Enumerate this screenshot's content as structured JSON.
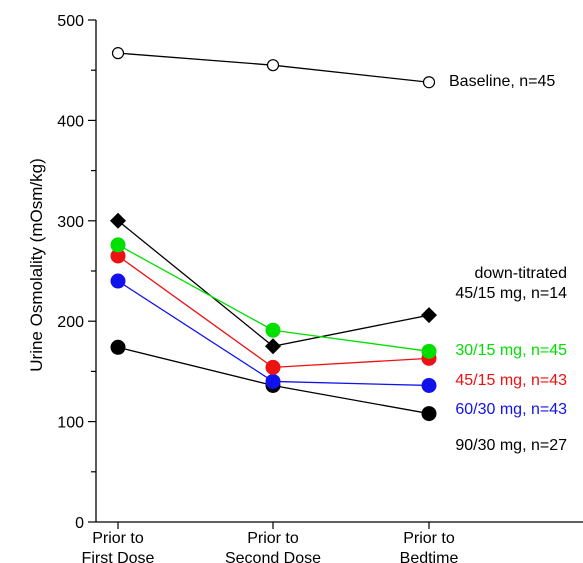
{
  "chart_data": {
    "type": "line",
    "xlabel": "",
    "ylabel": "Urine Osmolality (mOsm/kg)",
    "ylim": [
      0,
      500
    ],
    "yticks": [
      0,
      100,
      200,
      300,
      400,
      500
    ],
    "categories": [
      [
        "Prior to",
        "First Dose"
      ],
      [
        "Prior to",
        "Second Dose"
      ],
      [
        "Prior to",
        "Bedtime"
      ]
    ],
    "grid": false,
    "series": [
      {
        "name": "Baseline, n=45",
        "marker": "open-circle",
        "color": "#000000",
        "values": [
          467,
          455,
          438
        ]
      },
      {
        "name": "45/15 mg, n=14",
        "note": "down-titrated",
        "marker": "diamond",
        "color": "#000000",
        "values": [
          300,
          175,
          206
        ]
      },
      {
        "name": "30/15 mg, n=45",
        "marker": "circle",
        "color": "#00e000",
        "values": [
          276,
          191,
          170
        ]
      },
      {
        "name": "45/15 mg, n=43",
        "marker": "circle",
        "color": "#ee1111",
        "values": [
          265,
          154,
          163
        ]
      },
      {
        "name": "60/30 mg, n=43",
        "marker": "circle",
        "color": "#1111ee",
        "values": [
          240,
          140,
          136
        ]
      },
      {
        "name": "90/30 mg, n=27",
        "marker": "circle",
        "color": "#000000",
        "values": [
          174,
          136,
          108
        ]
      }
    ]
  }
}
